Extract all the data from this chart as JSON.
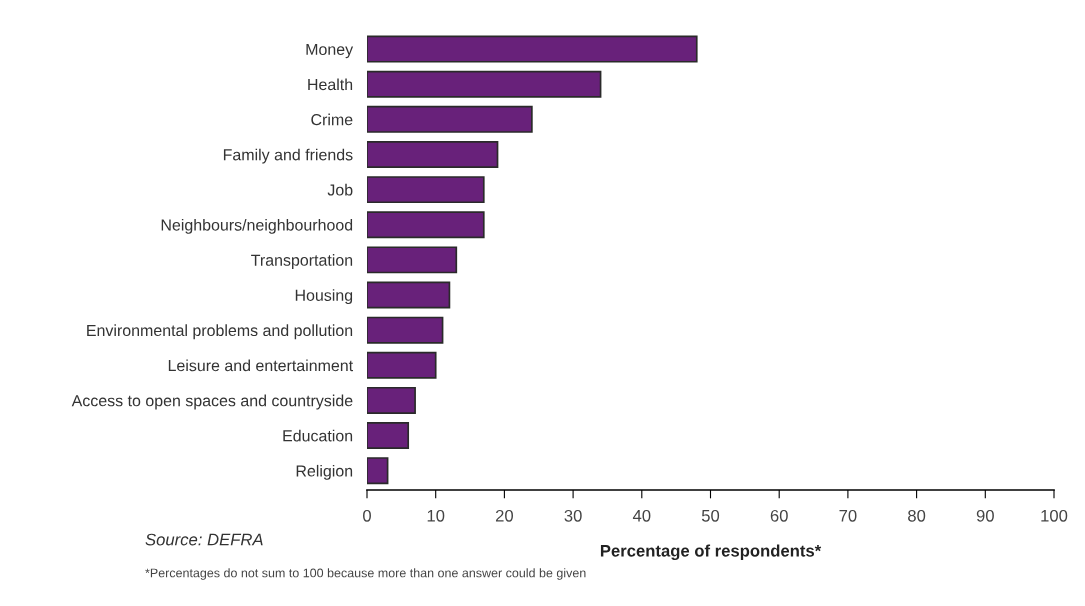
{
  "chart_data": {
    "type": "bar",
    "orientation": "horizontal",
    "xlabel": "Percentage of respondents*",
    "categories": [
      "Money",
      "Health",
      "Crime",
      "Family and friends",
      "Job",
      "Neighbours/neighbourhood",
      "Transportation",
      "Housing",
      "Environmental problems and pollution",
      "Leisure and entertainment",
      "Access to open spaces and countryside",
      "Education",
      "Religion"
    ],
    "values": [
      48,
      34,
      24,
      19,
      17,
      17,
      13,
      12,
      11,
      10,
      7,
      6,
      3
    ],
    "color": "#68217a",
    "xlim": [
      0,
      100
    ],
    "xticks": [
      0,
      10,
      20,
      30,
      40,
      50,
      60,
      70,
      80,
      90,
      100
    ],
    "grid": false,
    "annotations": [
      "Source: DEFRA",
      "*Percentages do not sum to 100 because more than one answer could be given"
    ]
  }
}
